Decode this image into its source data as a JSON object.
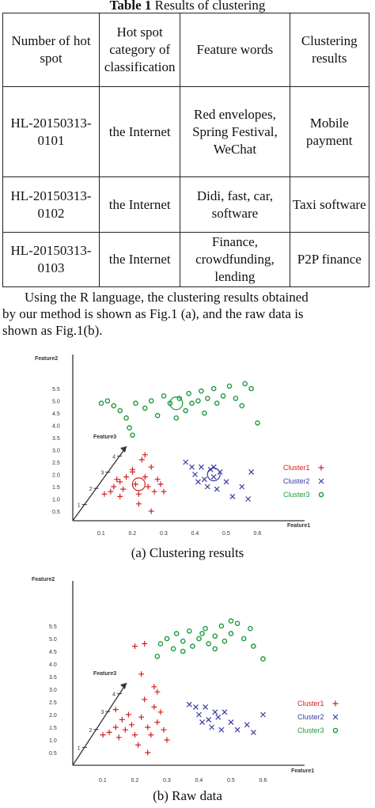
{
  "table": {
    "title_bold": "Table 1",
    "title_rest": " Results of clustering",
    "headers": [
      "Number of hot spot",
      "Hot spot category of classification",
      "Feature words",
      "Clustering results"
    ],
    "rows": [
      [
        "HL-20150313-0101",
        "the Internet",
        "Red envelopes, Spring Festival, WeChat",
        "Mobile payment"
      ],
      [
        "HL-20150313-0102",
        "the Internet",
        "Didi, fast, car, software",
        "Taxi software"
      ],
      [
        "HL-20150313-0103",
        "the Internet",
        "Finance, crowdfunding, lending",
        "P2P finance"
      ]
    ]
  },
  "paragraph": {
    "line1": "Using the R language, the clustering results obtained",
    "line2": "by our method is shown as Fig.1 (a), and the raw data is",
    "line3": "shown as Fig.1(b)."
  },
  "captions": {
    "a": "(a) Clustering results",
    "b": "(b) Raw data"
  },
  "chart_data": [
    {
      "type": "scatter",
      "title": "",
      "xlabel": "Feature1",
      "ylabel": "Feature2",
      "zlabel": "Feature3",
      "xticks": [
        "0.1",
        "0.2",
        "0.3",
        "0.4",
        "0.5",
        "0.6"
      ],
      "yticks": [
        "0.5",
        "1.0",
        "1.5",
        "2.0",
        "2.5",
        "3.0",
        "3.5",
        "4.0",
        "4.5",
        "5.0",
        "5.5"
      ],
      "zticks": [
        "1",
        "2",
        "3",
        "4"
      ],
      "legend": "right",
      "series": [
        {
          "name": "Cluster1",
          "marker": "+",
          "color": "#d42020",
          "points": [
            [
              0.11,
              1.2
            ],
            [
              0.13,
              1.3
            ],
            [
              0.14,
              1.5
            ],
            [
              0.16,
              1.1
            ],
            [
              0.16,
              1.7
            ],
            [
              0.17,
              1.4
            ],
            [
              0.18,
              1.9
            ],
            [
              0.2,
              2.1
            ],
            [
              0.21,
              1.6
            ],
            [
              0.22,
              1.2
            ],
            [
              0.22,
              0.8
            ],
            [
              0.23,
              2.6
            ],
            [
              0.24,
              1.9
            ],
            [
              0.25,
              1.5
            ],
            [
              0.26,
              2.3
            ],
            [
              0.27,
              1.3
            ],
            [
              0.28,
              1.8
            ],
            [
              0.29,
              1.6
            ],
            [
              0.3,
              1.3
            ],
            [
              0.26,
              0.5
            ],
            [
              0.24,
              2.8
            ],
            [
              0.2,
              2.2
            ],
            [
              0.15,
              1.8
            ]
          ]
        },
        {
          "name": "Cluster2",
          "marker": "x",
          "color": "#3a3aa8",
          "points": [
            [
              0.37,
              2.5
            ],
            [
              0.39,
              2.3
            ],
            [
              0.4,
              2.0
            ],
            [
              0.41,
              1.7
            ],
            [
              0.42,
              2.3
            ],
            [
              0.43,
              1.8
            ],
            [
              0.44,
              1.5
            ],
            [
              0.45,
              2.2
            ],
            [
              0.46,
              1.9
            ],
            [
              0.47,
              1.4
            ],
            [
              0.48,
              2.1
            ],
            [
              0.5,
              1.7
            ],
            [
              0.52,
              1.1
            ],
            [
              0.55,
              1.5
            ],
            [
              0.58,
              2.1
            ],
            [
              0.57,
              1.0
            ],
            [
              0.46,
              2.3
            ]
          ]
        },
        {
          "name": "Cluster3",
          "marker": "o",
          "color": "#1a9a3a",
          "points": [
            [
              0.1,
              4.9
            ],
            [
              0.12,
              5.0
            ],
            [
              0.14,
              4.8
            ],
            [
              0.16,
              4.6
            ],
            [
              0.18,
              4.3
            ],
            [
              0.19,
              3.9
            ],
            [
              0.2,
              3.6
            ],
            [
              0.21,
              4.9
            ],
            [
              0.24,
              4.7
            ],
            [
              0.26,
              5.0
            ],
            [
              0.28,
              4.4
            ],
            [
              0.3,
              5.2
            ],
            [
              0.32,
              4.9
            ],
            [
              0.35,
              5.1
            ],
            [
              0.37,
              4.6
            ],
            [
              0.38,
              5.3
            ],
            [
              0.39,
              4.9
            ],
            [
              0.41,
              5.0
            ],
            [
              0.43,
              4.5
            ],
            [
              0.44,
              5.1
            ],
            [
              0.46,
              5.5
            ],
            [
              0.47,
              4.9
            ],
            [
              0.49,
              5.2
            ],
            [
              0.51,
              5.6
            ],
            [
              0.53,
              5.1
            ],
            [
              0.55,
              4.8
            ],
            [
              0.56,
              5.7
            ],
            [
              0.58,
              5.5
            ],
            [
              0.6,
              4.1
            ],
            [
              0.34,
              4.3
            ],
            [
              0.42,
              5.4
            ]
          ]
        }
      ],
      "centers": [
        {
          "x": 0.22,
          "y": 1.6,
          "color": "#d42020"
        },
        {
          "x": 0.46,
          "y": 2.0,
          "color": "#3a3aa8"
        },
        {
          "x": 0.34,
          "y": 4.9,
          "color": "#1a9a3a"
        }
      ]
    },
    {
      "type": "scatter",
      "title": "",
      "xlabel": "Feature1",
      "ylabel": "Feature2",
      "zlabel": "Feature3",
      "xticks": [
        "0.1",
        "0.2",
        "0.3",
        "0.4",
        "0.5",
        "0.6"
      ],
      "yticks": [
        "0.5",
        "1.0",
        "1.5",
        "2.0",
        "2.5",
        "3.0",
        "3.5",
        "4.0",
        "4.5",
        "5.0",
        "5.5"
      ],
      "zticks": [
        "1",
        "2",
        "3",
        "4"
      ],
      "legend": "right",
      "series": [
        {
          "name": "Cluster1",
          "marker": "+",
          "color": "#d42020",
          "points": [
            [
              0.1,
              1.2
            ],
            [
              0.12,
              1.3
            ],
            [
              0.14,
              1.5
            ],
            [
              0.15,
              1.1
            ],
            [
              0.16,
              1.8
            ],
            [
              0.17,
              1.4
            ],
            [
              0.18,
              2.0
            ],
            [
              0.19,
              1.6
            ],
            [
              0.2,
              1.2
            ],
            [
              0.21,
              0.8
            ],
            [
              0.22,
              1.9
            ],
            [
              0.23,
              2.6
            ],
            [
              0.24,
              1.5
            ],
            [
              0.25,
              1.2
            ],
            [
              0.26,
              2.3
            ],
            [
              0.27,
              1.7
            ],
            [
              0.28,
              2.1
            ],
            [
              0.29,
              1.4
            ],
            [
              0.3,
              1.0
            ],
            [
              0.24,
              0.5
            ],
            [
              0.2,
              4.7
            ],
            [
              0.23,
              4.8
            ],
            [
              0.26,
              3.1
            ],
            [
              0.22,
              3.6
            ],
            [
              0.27,
              2.9
            ],
            [
              0.14,
              2.2
            ]
          ]
        },
        {
          "name": "Cluster2",
          "marker": "x",
          "color": "#3a3aa8",
          "points": [
            [
              0.37,
              2.4
            ],
            [
              0.39,
              2.3
            ],
            [
              0.4,
              2.0
            ],
            [
              0.41,
              1.7
            ],
            [
              0.42,
              2.3
            ],
            [
              0.43,
              1.8
            ],
            [
              0.44,
              1.5
            ],
            [
              0.45,
              2.1
            ],
            [
              0.46,
              1.9
            ],
            [
              0.47,
              1.4
            ],
            [
              0.48,
              2.1
            ],
            [
              0.5,
              1.7
            ],
            [
              0.52,
              1.4
            ],
            [
              0.55,
              1.6
            ],
            [
              0.6,
              2.0
            ],
            [
              0.57,
              1.3
            ]
          ]
        },
        {
          "name": "Cluster3",
          "marker": "o",
          "color": "#1a9a3a",
          "points": [
            [
              0.27,
              4.3
            ],
            [
              0.28,
              4.8
            ],
            [
              0.3,
              5.0
            ],
            [
              0.32,
              4.6
            ],
            [
              0.33,
              5.2
            ],
            [
              0.35,
              4.9
            ],
            [
              0.37,
              5.3
            ],
            [
              0.38,
              4.7
            ],
            [
              0.4,
              5.0
            ],
            [
              0.42,
              5.4
            ],
            [
              0.43,
              4.8
            ],
            [
              0.45,
              5.1
            ],
            [
              0.47,
              5.5
            ],
            [
              0.48,
              4.9
            ],
            [
              0.5,
              5.2
            ],
            [
              0.52,
              5.6
            ],
            [
              0.54,
              5.0
            ],
            [
              0.56,
              5.4
            ],
            [
              0.57,
              4.7
            ],
            [
              0.6,
              4.2
            ],
            [
              0.35,
              4.5
            ],
            [
              0.45,
              4.6
            ],
            [
              0.5,
              5.7
            ],
            [
              0.41,
              5.2
            ]
          ]
        }
      ],
      "centers": []
    }
  ]
}
